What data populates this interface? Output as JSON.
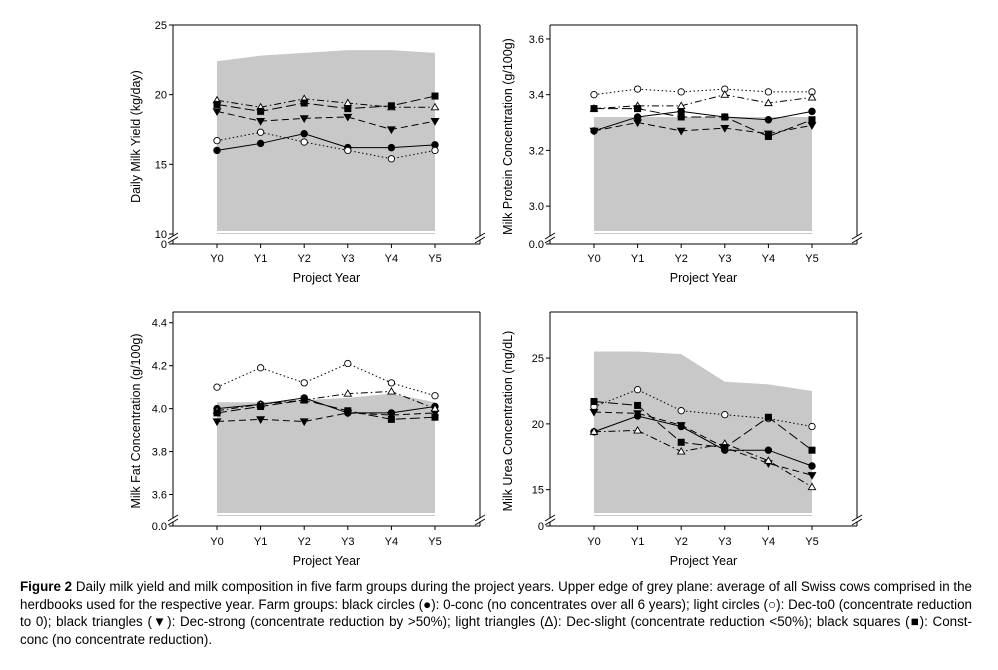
{
  "caption": {
    "label": "Figure 2",
    "text": "Daily milk yield and milk composition in five farm groups during the project years. Upper edge of grey plane: average of all Swiss cows comprised in the herdbooks used for the respective year. Farm groups: black circles (●): 0-conc (no concentrates over all 6 years); light circles (○): Dec-to0 (concentrate reduction to 0); black triangles (▼): Dec-strong (concentrate reduction by >50%); light triangles (Δ): Dec-slight (concentrate reduction <50%); black squares (■): Const-conc (no concentrate reduction)."
  },
  "chart_data": [
    {
      "type": "line",
      "id": "yield",
      "ylabel": "Daily Milk Yield (kg/day)",
      "xlabel": "Project Year",
      "categories": [
        "Y0",
        "Y1",
        "Y2",
        "Y3",
        "Y4",
        "Y5"
      ],
      "yticks": [
        "10",
        "15",
        "20",
        "25"
      ],
      "ybottom_tick": "0",
      "ylim": [
        10,
        25
      ],
      "break": true,
      "grey_plane": [
        22.4,
        22.8,
        23.0,
        23.2,
        23.2,
        23.0
      ],
      "series": [
        {
          "marker": "filled-circle",
          "values": [
            16.0,
            16.5,
            17.2,
            16.2,
            16.2,
            16.4
          ]
        },
        {
          "marker": "open-circle",
          "values": [
            16.7,
            17.3,
            16.6,
            16.0,
            15.4,
            16.0
          ]
        },
        {
          "marker": "filled-triangle",
          "values": [
            18.8,
            18.1,
            18.3,
            18.4,
            17.5,
            18.1
          ]
        },
        {
          "marker": "open-triangle",
          "values": [
            19.6,
            19.1,
            19.7,
            19.4,
            19.1,
            19.1
          ]
        },
        {
          "marker": "filled-square",
          "values": [
            19.3,
            18.8,
            19.4,
            19.0,
            19.2,
            19.9
          ]
        }
      ]
    },
    {
      "type": "line",
      "id": "protein",
      "ylabel": "Milk Protein Concentration (g/100g)",
      "xlabel": "Project Year",
      "categories": [
        "Y0",
        "Y1",
        "Y2",
        "Y3",
        "Y4",
        "Y5"
      ],
      "yticks": [
        "3.0",
        "3.2",
        "3.4",
        "3.6"
      ],
      "ybottom_tick": "0.0",
      "ylim": [
        2.9,
        3.65
      ],
      "break": true,
      "grey_plane": [
        3.32,
        3.32,
        3.32,
        3.32,
        3.32,
        3.32
      ],
      "series": [
        {
          "marker": "filled-circle",
          "values": [
            3.27,
            3.32,
            3.34,
            3.32,
            3.31,
            3.34
          ]
        },
        {
          "marker": "open-circle",
          "values": [
            3.4,
            3.42,
            3.41,
            3.42,
            3.41,
            3.41
          ]
        },
        {
          "marker": "filled-triangle",
          "values": [
            3.27,
            3.3,
            3.27,
            3.28,
            3.26,
            3.29
          ]
        },
        {
          "marker": "open-triangle",
          "values": [
            3.35,
            3.36,
            3.36,
            3.4,
            3.37,
            3.39
          ]
        },
        {
          "marker": "filled-square",
          "values": [
            3.35,
            3.35,
            3.32,
            3.32,
            3.25,
            3.31
          ]
        }
      ]
    },
    {
      "type": "line",
      "id": "fat",
      "ylabel": "Milk Fat Concentration (g/100g)",
      "xlabel": "Project Year",
      "categories": [
        "Y0",
        "Y1",
        "Y2",
        "Y3",
        "Y4",
        "Y5"
      ],
      "yticks": [
        "3.6",
        "3.8",
        "4.0",
        "4.2",
        "4.4"
      ],
      "ybottom_tick": "0.0",
      "ylim": [
        3.5,
        4.45
      ],
      "break": true,
      "grey_plane": [
        4.03,
        4.03,
        4.04,
        4.05,
        4.07,
        4.03
      ],
      "series": [
        {
          "marker": "filled-circle",
          "values": [
            4.0,
            4.02,
            4.05,
            3.98,
            3.98,
            4.01
          ]
        },
        {
          "marker": "open-circle",
          "values": [
            4.1,
            4.19,
            4.12,
            4.21,
            4.12,
            4.06
          ]
        },
        {
          "marker": "filled-triangle",
          "values": [
            3.94,
            3.95,
            3.94,
            3.98,
            3.97,
            3.98
          ]
        },
        {
          "marker": "open-triangle",
          "values": [
            3.99,
            4.02,
            4.04,
            4.07,
            4.08,
            4.0
          ]
        },
        {
          "marker": "filled-square",
          "values": [
            3.98,
            4.01,
            4.04,
            3.99,
            3.95,
            3.96
          ]
        }
      ]
    },
    {
      "type": "line",
      "id": "urea",
      "ylabel": "Milk Urea Concentration (mg/dL)",
      "xlabel": "Project Year",
      "categories": [
        "Y0",
        "Y1",
        "Y2",
        "Y3",
        "Y4",
        "Y5"
      ],
      "yticks": [
        "15",
        "20",
        "25"
      ],
      "ybottom_tick": "0",
      "ylim": [
        13,
        28.5
      ],
      "break": true,
      "grey_plane": [
        25.5,
        25.5,
        25.3,
        23.2,
        23.0,
        22.5
      ],
      "series": [
        {
          "marker": "filled-circle",
          "values": [
            19.4,
            20.6,
            19.8,
            18.0,
            18.0,
            16.8
          ]
        },
        {
          "marker": "open-circle",
          "values": [
            21.3,
            22.6,
            21.0,
            20.7,
            20.4,
            19.8
          ]
        },
        {
          "marker": "filled-triangle",
          "values": [
            20.9,
            20.8,
            19.9,
            18.2,
            17.0,
            16.1
          ]
        },
        {
          "marker": "open-triangle",
          "values": [
            19.4,
            19.5,
            17.9,
            18.5,
            17.2,
            15.2
          ]
        },
        {
          "marker": "filled-square",
          "values": [
            21.7,
            21.4,
            18.6,
            18.2,
            20.5,
            18.0
          ]
        }
      ]
    }
  ]
}
